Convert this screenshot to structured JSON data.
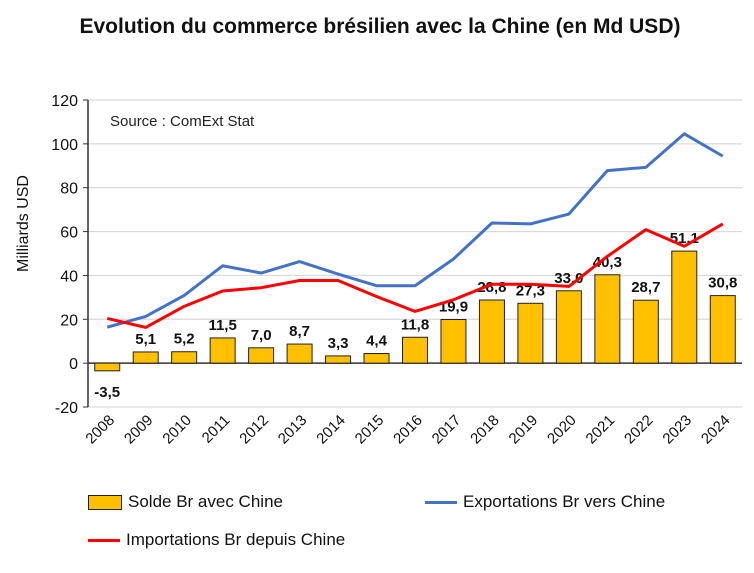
{
  "chart_data": {
    "type": "bar+line",
    "title": "Evolution du commerce brésilien avec la Chine (en Md USD)",
    "ylabel": "Milliards USD",
    "annotation": "Source : ComExt Stat",
    "ylim": [
      -20,
      120
    ],
    "yticks": [
      -20,
      0,
      20,
      40,
      60,
      80,
      100,
      120
    ],
    "grid": true,
    "legend_position": "bottom",
    "categories": [
      "2008",
      "2009",
      "2010",
      "2011",
      "2012",
      "2013",
      "2014",
      "2015",
      "2016",
      "2017",
      "2018",
      "2019",
      "2020",
      "2021",
      "2022",
      "2023",
      "2024"
    ],
    "series": [
      {
        "name": "Solde Br avec Chine",
        "type": "bar",
        "color": "#FFC000",
        "values": [
          -3.5,
          5.1,
          5.2,
          11.5,
          7.0,
          8.7,
          3.3,
          4.4,
          11.8,
          19.9,
          28.8,
          27.3,
          33.0,
          40.3,
          28.7,
          51.1,
          30.8
        ],
        "labels": [
          "-3,5",
          "5,1",
          "5,2",
          "11,5",
          "7,0",
          "8,7",
          "3,3",
          "4,4",
          "11,8",
          "19,9",
          "28,8",
          "27,3",
          "33,0",
          "40,3",
          "28,7",
          "51,1",
          "30,8"
        ]
      },
      {
        "name": "Exportations Br vers Chine",
        "type": "line",
        "color": "#4472C4",
        "values": [
          16.4,
          21.3,
          30.9,
          44.4,
          41.1,
          46.3,
          40.6,
          35.3,
          35.3,
          47.5,
          63.9,
          63.5,
          68.0,
          87.8,
          89.3,
          104.6,
          94.4
        ]
      },
      {
        "name": "Importations Br depuis Chine",
        "type": "line",
        "color": "#FF0000",
        "values": [
          20.4,
          16.3,
          25.9,
          32.9,
          34.4,
          37.7,
          37.7,
          30.4,
          23.6,
          28.9,
          36.0,
          36.0,
          35.0,
          48.7,
          60.9,
          53.3,
          63.5
        ]
      }
    ]
  }
}
